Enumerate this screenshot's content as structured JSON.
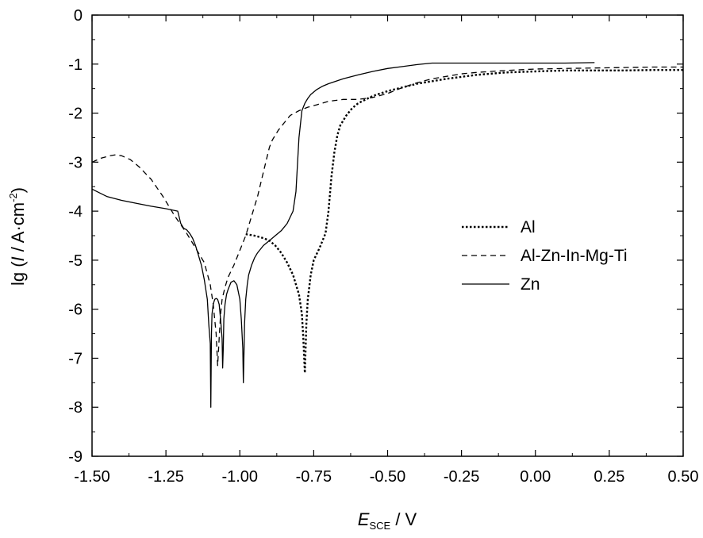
{
  "chart_data": {
    "type": "line",
    "xlabel": {
      "main": "E",
      "sub": "SCE",
      "unit": " / V"
    },
    "ylabel": {
      "prefix": "lg (",
      "var": "I",
      "unit": " / A·cm",
      "sup": "-2",
      "suffix": ")"
    },
    "xlim": [
      -1.5,
      0.5
    ],
    "ylim": [
      -9,
      0
    ],
    "x_ticks": [
      -1.5,
      -1.25,
      -1.0,
      -0.75,
      -0.5,
      -0.25,
      0.0,
      0.25,
      0.5
    ],
    "x_tick_labels": [
      "-1.50",
      "-1.25",
      "-1.00",
      "-0.75",
      "-0.50",
      "-0.25",
      "0.00",
      "0.25",
      "0.50"
    ],
    "y_ticks": [
      0,
      -1,
      -2,
      -3,
      -4,
      -5,
      -6,
      -7,
      -8,
      -9
    ],
    "y_tick_labels": [
      "0",
      "-1",
      "-2",
      "-3",
      "-4",
      "-5",
      "-6",
      "-7",
      "-8",
      "-9"
    ],
    "grid": false,
    "legend_position": "right",
    "series": [
      {
        "name": "Al",
        "style": "dotted",
        "color": "#000000",
        "x": [
          -0.98,
          -0.95,
          -0.92,
          -0.9,
          -0.88,
          -0.86,
          -0.84,
          -0.82,
          -0.8,
          -0.79,
          -0.785,
          -0.78,
          -0.775,
          -0.77,
          -0.76,
          -0.75,
          -0.73,
          -0.71,
          -0.7,
          -0.69,
          -0.68,
          -0.67,
          -0.66,
          -0.64,
          -0.62,
          -0.6,
          -0.55,
          -0.5,
          -0.4,
          -0.3,
          -0.2,
          -0.1,
          0.0,
          0.1,
          0.2,
          0.3,
          0.4,
          0.5
        ],
        "y": [
          -4.47,
          -4.5,
          -4.55,
          -4.6,
          -4.7,
          -4.85,
          -5.05,
          -5.3,
          -5.7,
          -6.1,
          -6.6,
          -7.3,
          -6.3,
          -5.8,
          -5.3,
          -5.0,
          -4.75,
          -4.45,
          -4.0,
          -3.3,
          -2.8,
          -2.45,
          -2.25,
          -2.05,
          -1.9,
          -1.8,
          -1.65,
          -1.55,
          -1.4,
          -1.3,
          -1.22,
          -1.17,
          -1.15,
          -1.13,
          -1.13,
          -1.13,
          -1.12,
          -1.12
        ]
      },
      {
        "name": "Al-Zn-In-Mg-Ti",
        "style": "dashed",
        "color": "#000000",
        "x": [
          -1.5,
          -1.47,
          -1.44,
          -1.42,
          -1.4,
          -1.37,
          -1.34,
          -1.3,
          -1.26,
          -1.22,
          -1.18,
          -1.15,
          -1.12,
          -1.1,
          -1.09,
          -1.08,
          -1.075,
          -1.07,
          -1.065,
          -1.06,
          -1.05,
          -1.04,
          -1.02,
          -1.0,
          -0.98,
          -0.96,
          -0.94,
          -0.92,
          -0.9,
          -0.89,
          -0.88,
          -0.87,
          -0.85,
          -0.83,
          -0.8,
          -0.77,
          -0.74,
          -0.7,
          -0.65,
          -0.6,
          -0.55,
          -0.5,
          -0.45,
          -0.4,
          -0.35,
          -0.3,
          -0.25,
          -0.2,
          -0.1,
          0.0,
          0.1,
          0.2,
          0.3,
          0.4,
          0.5
        ],
        "y": [
          -3.0,
          -2.92,
          -2.87,
          -2.85,
          -2.87,
          -2.95,
          -3.1,
          -3.35,
          -3.7,
          -4.1,
          -4.45,
          -4.75,
          -5.05,
          -5.5,
          -5.9,
          -6.5,
          -7.15,
          -6.6,
          -6.1,
          -5.8,
          -5.55,
          -5.35,
          -5.1,
          -4.8,
          -4.5,
          -4.1,
          -3.7,
          -3.2,
          -2.7,
          -2.55,
          -2.45,
          -2.35,
          -2.2,
          -2.05,
          -1.95,
          -1.88,
          -1.83,
          -1.76,
          -1.72,
          -1.72,
          -1.68,
          -1.6,
          -1.48,
          -1.38,
          -1.3,
          -1.25,
          -1.2,
          -1.17,
          -1.13,
          -1.1,
          -1.09,
          -1.08,
          -1.07,
          -1.06,
          -1.06
        ]
      },
      {
        "name": "Zn",
        "style": "solid",
        "color": "#000000",
        "x": [
          -1.5,
          -1.45,
          -1.4,
          -1.35,
          -1.3,
          -1.25,
          -1.21,
          -1.2,
          -1.19,
          -1.18,
          -1.17,
          -1.16,
          -1.15,
          -1.14,
          -1.13,
          -1.12,
          -1.11,
          -1.105,
          -1.1,
          -1.098,
          -1.096,
          -1.094,
          -1.09,
          -1.085,
          -1.08,
          -1.075,
          -1.07,
          -1.065,
          -1.06,
          -1.058,
          -1.056,
          -1.054,
          -1.05,
          -1.045,
          -1.04,
          -1.03,
          -1.02,
          -1.01,
          -1.0,
          -0.995,
          -0.99,
          -0.988,
          -0.986,
          -0.984,
          -0.98,
          -0.975,
          -0.97,
          -0.96,
          -0.95,
          -0.94,
          -0.92,
          -0.9,
          -0.88,
          -0.86,
          -0.84,
          -0.82,
          -0.81,
          -0.8,
          -0.79,
          -0.78,
          -0.77,
          -0.76,
          -0.74,
          -0.72,
          -0.7,
          -0.65,
          -0.6,
          -0.55,
          -0.5,
          -0.45,
          -0.4,
          -0.35,
          -0.3,
          -0.2,
          -0.1,
          0.0,
          0.1,
          0.2
        ],
        "y": [
          -3.55,
          -3.7,
          -3.78,
          -3.84,
          -3.9,
          -3.95,
          -4.0,
          -4.25,
          -4.35,
          -4.38,
          -4.45,
          -4.55,
          -4.7,
          -4.9,
          -5.1,
          -5.4,
          -5.8,
          -6.3,
          -6.7,
          -8.0,
          -6.5,
          -6.1,
          -5.9,
          -5.8,
          -5.78,
          -5.8,
          -5.9,
          -6.2,
          -6.6,
          -7.2,
          -6.8,
          -6.2,
          -5.9,
          -5.7,
          -5.6,
          -5.45,
          -5.42,
          -5.5,
          -5.8,
          -6.2,
          -6.8,
          -7.5,
          -6.9,
          -6.3,
          -5.8,
          -5.5,
          -5.3,
          -5.1,
          -4.95,
          -4.85,
          -4.7,
          -4.6,
          -4.5,
          -4.4,
          -4.25,
          -4.0,
          -3.6,
          -2.5,
          -1.95,
          -1.8,
          -1.7,
          -1.62,
          -1.52,
          -1.45,
          -1.4,
          -1.3,
          -1.22,
          -1.15,
          -1.09,
          -1.05,
          -1.01,
          -0.98,
          -0.98,
          -0.98,
          -0.98,
          -0.98,
          -0.98,
          -0.97
        ]
      }
    ]
  }
}
